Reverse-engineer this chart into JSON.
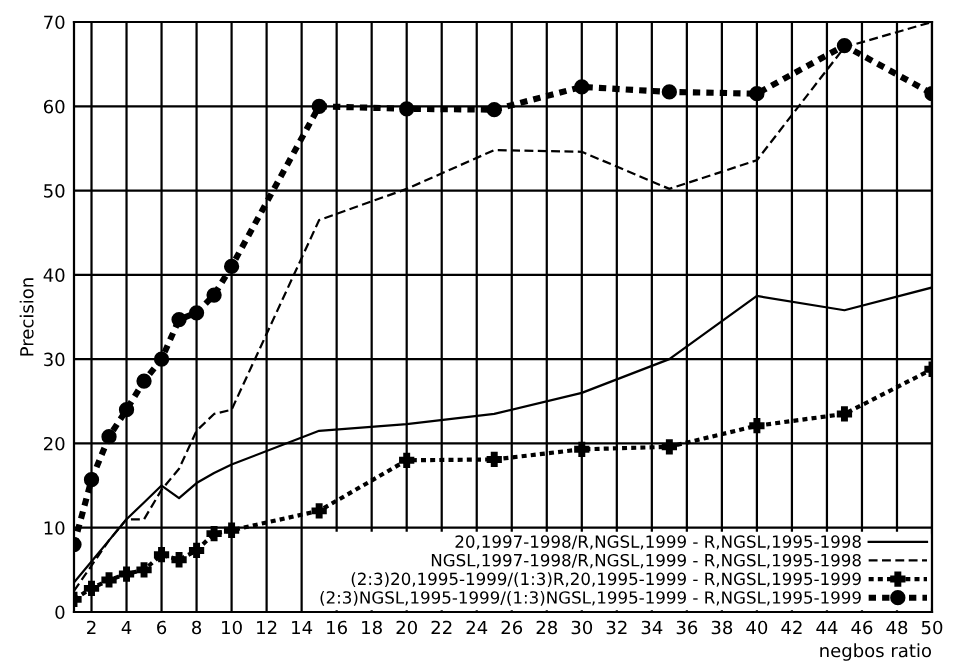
{
  "chart_data": {
    "type": "line",
    "xlabel": "negbos ratio",
    "ylabel": "Precision",
    "x": [
      1,
      2,
      3,
      4,
      5,
      6,
      7,
      8,
      9,
      10,
      15,
      20,
      25,
      30,
      35,
      40,
      45,
      50
    ],
    "series": [
      {
        "name": "20,1997-1998/R,NGSL,1999 - R,NGSL,1995-1998",
        "color": "#000000",
        "line_style": "solid",
        "marker": "none",
        "values": [
          3.5,
          6,
          8.5,
          11,
          13,
          15,
          13.5,
          15.3,
          16.5,
          17.5,
          21.5,
          22.3,
          23.5,
          26,
          30,
          37.5,
          35.8,
          38.5
        ]
      },
      {
        "name": "NGSL,1997-1998/R,NGSL,1999 - R,NGSL,1995-1998",
        "color": "#000000",
        "line_style": "dashed",
        "marker": "none",
        "values": [
          2.5,
          5.5,
          8.5,
          11,
          11,
          14.5,
          17,
          21.5,
          23.5,
          24,
          46.5,
          50.2,
          54.8,
          54.6,
          50.2,
          53.6,
          67,
          70
        ]
      },
      {
        "name": "(2:3)20,1995-1999/(1:3)R,20,1995-1999 - R,NGSL,1995-1999",
        "color": "#000000",
        "line_style": "dotted",
        "marker": "cross",
        "values": [
          1.5,
          2.8,
          3.8,
          4.5,
          5,
          6.8,
          6.2,
          7.3,
          9.3,
          9.7,
          12,
          18,
          18.1,
          19.3,
          19.6,
          22.1,
          23.5,
          28.8
        ]
      },
      {
        "name": "(2:3)NGSL,1995-1999/(1:3)NGSL,1995-1999 - R,NGSL,1995-1999",
        "color": "#000000",
        "line_style": "dotted",
        "marker": "circle",
        "values": [
          8,
          15.7,
          20.8,
          24,
          27.4,
          30,
          34.7,
          35.5,
          37.6,
          41,
          60,
          59.7,
          59.6,
          62.3,
          61.7,
          61.5,
          67.2,
          61.5
        ]
      }
    ],
    "xlim": [
      1,
      50
    ],
    "xticks": [
      2,
      4,
      6,
      8,
      10,
      12,
      14,
      16,
      18,
      20,
      22,
      24,
      26,
      28,
      30,
      32,
      34,
      36,
      38,
      40,
      42,
      44,
      46,
      48,
      50
    ],
    "ylim": [
      0,
      70
    ],
    "yticks": [
      0,
      10,
      20,
      30,
      40,
      50,
      60,
      70
    ],
    "grid": true,
    "legend": "bottom right"
  }
}
